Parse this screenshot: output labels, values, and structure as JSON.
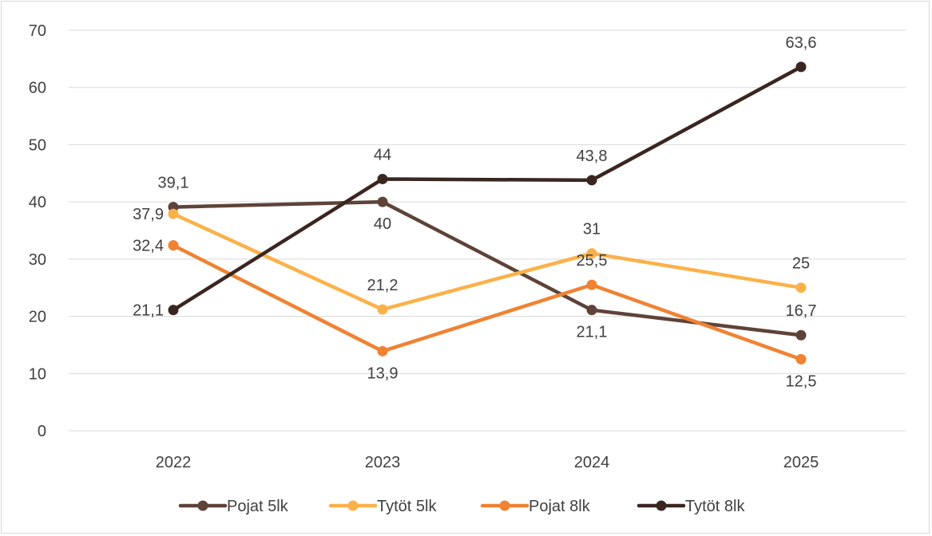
{
  "chart_data": {
    "type": "line",
    "title": "",
    "xlabel": "",
    "ylabel": "",
    "categories": [
      "2022",
      "2023",
      "2024",
      "2025"
    ],
    "ylim": [
      0,
      70
    ],
    "yticks": [
      0,
      10,
      20,
      30,
      40,
      50,
      60,
      70
    ],
    "grid": true,
    "legend_position": "bottom",
    "series": [
      {
        "name": "Pojat 5lk",
        "color": "#5e4338",
        "values": [
          39.1,
          40,
          21.1,
          16.7
        ],
        "labels": [
          "39,1",
          "40",
          "21,1",
          "16,7"
        ]
      },
      {
        "name": "Tytöt 5lk",
        "color": "#fbb149",
        "values": [
          37.9,
          21.2,
          31,
          25
        ],
        "labels": [
          "37,9",
          "21,2",
          "31",
          "25"
        ]
      },
      {
        "name": "Pojat 8lk",
        "color": "#f08232",
        "values": [
          32.4,
          13.9,
          25.5,
          12.5
        ],
        "labels": [
          "32,4",
          "13,9",
          "25,5",
          "12,5"
        ]
      },
      {
        "name": "Tytöt 8lk",
        "color": "#3a2620",
        "values": [
          21.1,
          44,
          43.8,
          63.6
        ],
        "labels": [
          "21,1",
          "44",
          "43,8",
          "63,6"
        ]
      }
    ]
  }
}
